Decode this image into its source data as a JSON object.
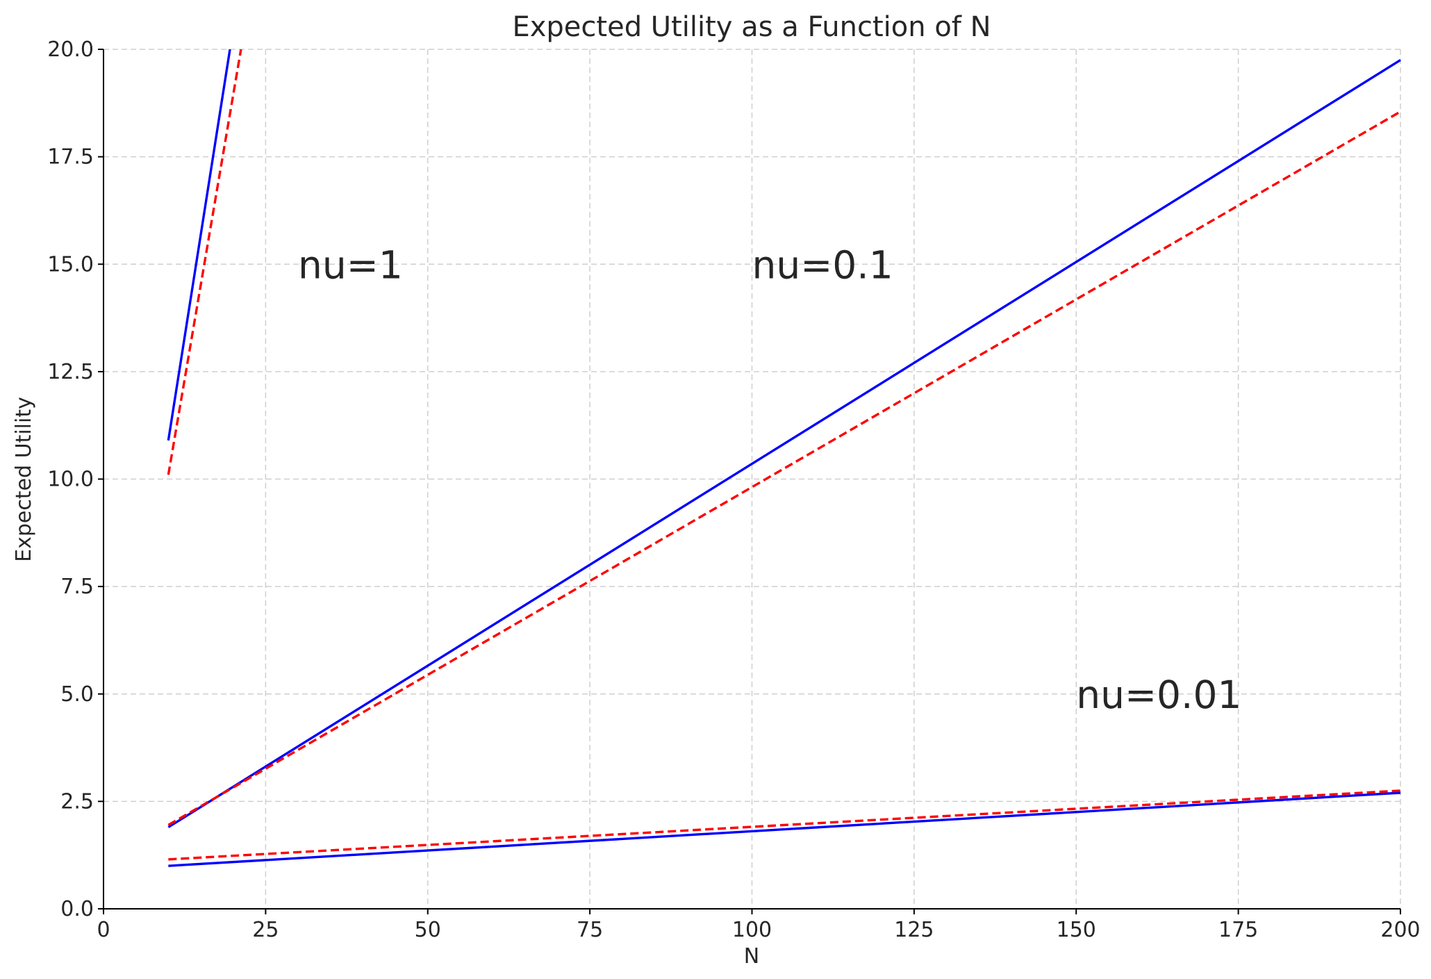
{
  "chart_data": {
    "type": "line",
    "title": "Expected Utility as a Function of N",
    "xlabel": "N",
    "ylabel": "Expected Utility",
    "xlim": [
      0,
      200
    ],
    "ylim": [
      0,
      20
    ],
    "xticks": [
      0,
      25,
      50,
      75,
      100,
      125,
      150,
      175,
      200
    ],
    "yticks": [
      0.0,
      2.5,
      5.0,
      7.5,
      10.0,
      12.5,
      15.0,
      17.5,
      20.0
    ],
    "xtick_labels": [
      "0",
      "25",
      "50",
      "75",
      "100",
      "125",
      "150",
      "175",
      "200"
    ],
    "ytick_labels": [
      "0.0",
      "2.5",
      "5.0",
      "7.5",
      "10.0",
      "12.5",
      "15.0",
      "17.5",
      "20.0"
    ],
    "grid": true,
    "series": [
      {
        "color": "#0000ff",
        "style": "solid",
        "x": [
          10,
          19.5
        ],
        "y": [
          10.9,
          20.0
        ]
      },
      {
        "color": "#ff0000",
        "style": "dashed",
        "x": [
          10,
          21.2
        ],
        "y": [
          10.1,
          20.0
        ]
      },
      {
        "color": "#0000ff",
        "style": "solid",
        "x": [
          10,
          200
        ],
        "y": [
          1.9,
          19.75
        ]
      },
      {
        "color": "#ff0000",
        "style": "dashed",
        "x": [
          10,
          200
        ],
        "y": [
          1.95,
          18.55
        ]
      },
      {
        "color": "#0000ff",
        "style": "solid",
        "x": [
          10,
          200
        ],
        "y": [
          1.0,
          2.7
        ]
      },
      {
        "color": "#ff0000",
        "style": "dashed",
        "x": [
          10,
          200
        ],
        "y": [
          1.15,
          2.75
        ]
      }
    ],
    "annotations": [
      {
        "text": "nu=1",
        "x": 30,
        "y": 15
      },
      {
        "text": "nu=0.1",
        "x": 100,
        "y": 15
      },
      {
        "text": "nu=0.01",
        "x": 150,
        "y": 5
      }
    ]
  }
}
